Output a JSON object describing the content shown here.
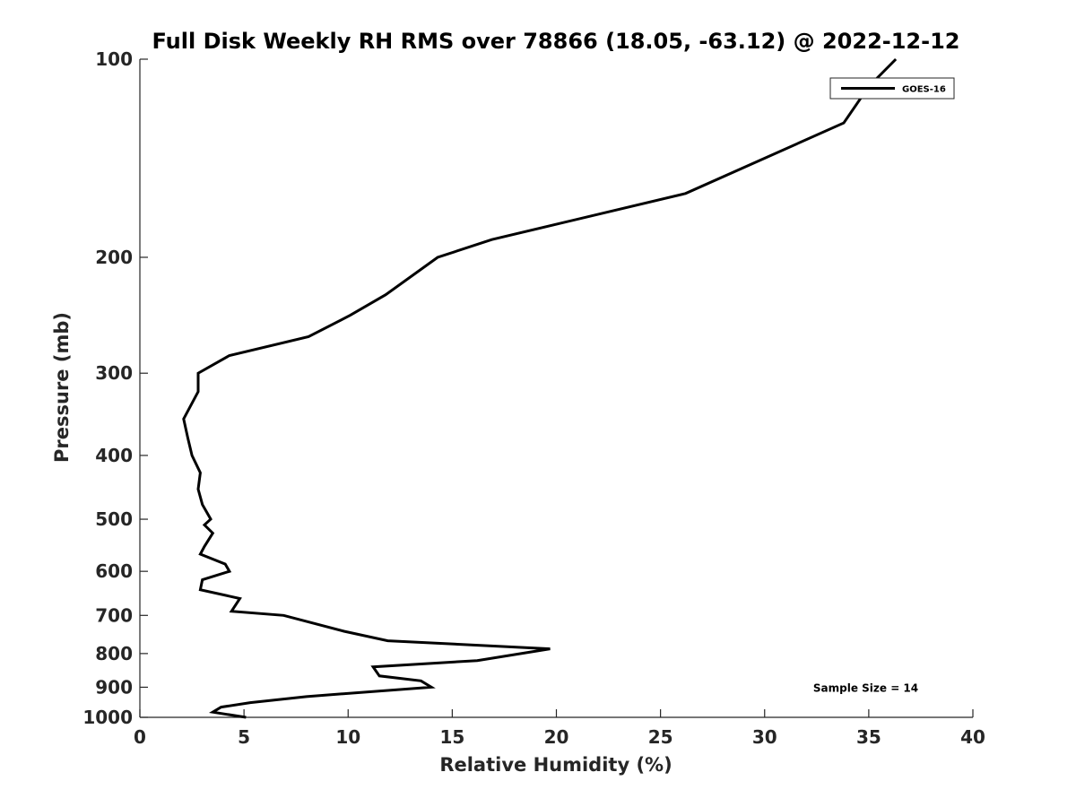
{
  "chart_data": {
    "type": "line",
    "title": "Full Disk Weekly RH RMS over 78866 (18.05, -63.12) @ 2022-12-12",
    "xlabel": "Relative Humidity (%)",
    "ylabel": "Pressure (mb)",
    "xlim": [
      0,
      40
    ],
    "ylim": [
      100,
      1000
    ],
    "y_scale": "log",
    "y_reversed": true,
    "x_ticks": [
      0,
      5,
      10,
      15,
      20,
      25,
      30,
      35,
      40
    ],
    "y_ticks": [
      100,
      200,
      300,
      400,
      500,
      600,
      700,
      800,
      900,
      1000
    ],
    "grid": false,
    "legend_position": "top-right",
    "series": [
      {
        "name": "GOES-16",
        "color": "#000000",
        "points": [
          [
            36.3,
            100
          ],
          [
            35.0,
            110
          ],
          [
            33.8,
            125
          ],
          [
            26.2,
            160
          ],
          [
            16.9,
            188
          ],
          [
            14.3,
            200
          ],
          [
            11.8,
            228
          ],
          [
            10.1,
            245
          ],
          [
            8.1,
            264
          ],
          [
            4.3,
            282
          ],
          [
            2.8,
            300
          ],
          [
            2.8,
            320
          ],
          [
            2.1,
            352
          ],
          [
            2.3,
            376
          ],
          [
            2.5,
            400
          ],
          [
            2.9,
            425
          ],
          [
            2.8,
            450
          ],
          [
            3.0,
            475
          ],
          [
            3.4,
            500
          ],
          [
            3.1,
            510
          ],
          [
            3.5,
            525
          ],
          [
            3.1,
            550
          ],
          [
            2.9,
            565
          ],
          [
            4.1,
            585
          ],
          [
            4.3,
            600
          ],
          [
            3.0,
            618
          ],
          [
            2.9,
            640
          ],
          [
            4.8,
            660
          ],
          [
            4.4,
            690
          ],
          [
            6.9,
            700
          ],
          [
            9.8,
            740
          ],
          [
            11.9,
            765
          ],
          [
            19.7,
            787
          ],
          [
            16.2,
            820
          ],
          [
            11.2,
            838
          ],
          [
            11.5,
            865
          ],
          [
            13.5,
            880
          ],
          [
            14.0,
            900
          ],
          [
            10.9,
            915
          ],
          [
            8.0,
            930
          ],
          [
            5.3,
            950
          ],
          [
            3.9,
            965
          ],
          [
            3.5,
            982
          ],
          [
            5.1,
            1000
          ]
        ]
      }
    ],
    "annotations": [
      {
        "text": "Sample Size = 14",
        "x": 35.0,
        "y": 900
      }
    ]
  }
}
